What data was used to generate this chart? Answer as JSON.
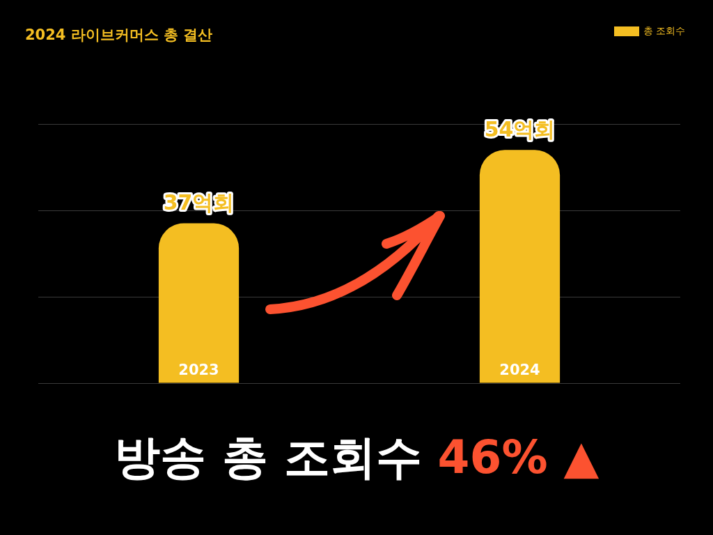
{
  "chart_data": {
    "type": "bar",
    "title": "2024 라이브커머스 총 결산",
    "categories": [
      "2023",
      "2024"
    ],
    "series": [
      {
        "name": "총 조회수",
        "color": "#f4be22",
        "values": [
          37,
          54
        ],
        "value_labels": [
          "37억회",
          "54억회"
        ]
      }
    ],
    "ylim": [
      0,
      60
    ],
    "yticks": [
      {
        "value": 0,
        "label": null
      },
      {
        "value": 20,
        "label": null
      },
      {
        "value": 40,
        "label": null
      },
      {
        "value": 60,
        "label": null
      }
    ],
    "grid": "y",
    "tick_labels": "x",
    "legend": "top right",
    "annotations": [
      "방송 총 조회수",
      "46% ▲"
    ]
  }
}
